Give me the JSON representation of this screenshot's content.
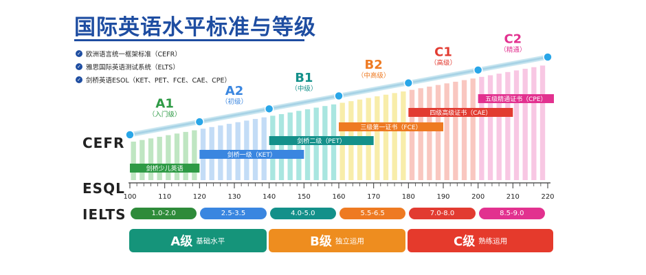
{
  "title": "国际英语水平标准与等级",
  "legend": [
    "欧洲语言统一框架标准（CEFR）",
    "雅思国际英语测试系统（ELTS）",
    "剑桥英语ESOL（KET、PET、FCE、CAE、CPE）"
  ],
  "row_labels": {
    "cefr": "CEFR",
    "esql": "ESQL",
    "ielts": "IELTS"
  },
  "scale": {
    "min": 100,
    "max": 220,
    "major_ticks": [
      100,
      110,
      120,
      130,
      140,
      150,
      160,
      170,
      180,
      190,
      200,
      210,
      220
    ]
  },
  "levels": [
    {
      "code": "A1",
      "name": "（入门级）",
      "from": 100,
      "to": 120,
      "color": "#2e9a45",
      "light": "#bfe6c2"
    },
    {
      "code": "A2",
      "name": "（初级）",
      "from": 120,
      "to": 140,
      "color": "#3a86e0",
      "light": "#c3dcf6"
    },
    {
      "code": "B1",
      "name": "（中级）",
      "from": 140,
      "to": 160,
      "color": "#13908a",
      "light": "#a9e6e0"
    },
    {
      "code": "B2",
      "name": "（中高级）",
      "from": 160,
      "to": 180,
      "color": "#ee7a22",
      "light": "#f8edaa"
    },
    {
      "code": "C1",
      "name": "（高级）",
      "from": 180,
      "to": 200,
      "color": "#e23b31",
      "light": "#f9c7c0"
    },
    {
      "code": "C2",
      "name": "（精通）",
      "from": 200,
      "to": 220,
      "color": "#e2318f",
      "light": "#f8c7e3"
    }
  ],
  "cambridge_exams": [
    {
      "label": "剑桥少儿英语",
      "from": 100,
      "to": 120,
      "color": "#2e9a45"
    },
    {
      "label": "剑桥一级（KET）",
      "from": 120,
      "to": 150,
      "color": "#3a86e0"
    },
    {
      "label": "剑桥二级（PET）",
      "from": 140,
      "to": 170,
      "color": "#13908a"
    },
    {
      "label": "三级第一证书（FCE）",
      "from": 160,
      "to": 190,
      "color": "#ee7a22"
    },
    {
      "label": "四级高级证书（CAE）",
      "from": 180,
      "to": 210,
      "color": "#e23b31"
    },
    {
      "label": "五级精通证书（CPE）",
      "from": 200,
      "to": 230,
      "color": "#e2318f"
    }
  ],
  "ielts": [
    {
      "label": "1.0-2.0",
      "color": "#2e8b3a"
    },
    {
      "label": "2.5-3.5",
      "color": "#3a86e0"
    },
    {
      "label": "4.0-5.0",
      "color": "#13908a"
    },
    {
      "label": "5.5-6.5",
      "color": "#ee7a22"
    },
    {
      "label": "7.0-8.0",
      "color": "#e23b31"
    },
    {
      "label": "8.5-9.0",
      "color": "#e2318f"
    }
  ],
  "bands": [
    {
      "main": "A级",
      "sub": "基础水平",
      "color": "#15947a"
    },
    {
      "main": "B级",
      "sub": "独立运用",
      "color": "#ee8d1f"
    },
    {
      "main": "C级",
      "sub": "熟练运用",
      "color": "#e53a2c"
    }
  ]
}
